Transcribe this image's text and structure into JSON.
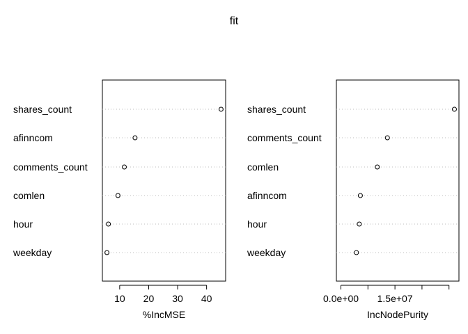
{
  "title": "fit",
  "chart_data": [
    {
      "type": "scatter",
      "subtype": "dotchart",
      "categories": [
        "shares_count",
        "afinncom",
        "comments_count",
        "comlen",
        "hour",
        "weekday"
      ],
      "values": [
        45.0,
        15.3,
        11.6,
        9.4,
        6.1,
        5.6
      ],
      "xlabel": "%IncMSE",
      "ylabel": "",
      "xlim": [
        5.6,
        45.0
      ],
      "xticks": [
        10,
        20,
        30,
        40
      ],
      "xtick_labels": [
        "10",
        "20",
        "30",
        "40"
      ],
      "grid": "dotted horizontal lines"
    },
    {
      "type": "scatter",
      "subtype": "dotchart",
      "categories": [
        "shares_count",
        "comments_count",
        "comlen",
        "afinncom",
        "hour",
        "weekday"
      ],
      "values": [
        31500000,
        12900000,
        10100000,
        5400000,
        5100000,
        4300000
      ],
      "xlabel": "IncNodePurity",
      "ylabel": "",
      "xlim": [
        0,
        31500000
      ],
      "xticks": [
        0,
        7500000,
        15000000,
        22500000,
        30000000
      ],
      "xtick_labels": [
        "0.0e+00",
        "",
        "1.5e+07",
        "",
        ""
      ],
      "grid": "dotted horizontal lines"
    }
  ]
}
